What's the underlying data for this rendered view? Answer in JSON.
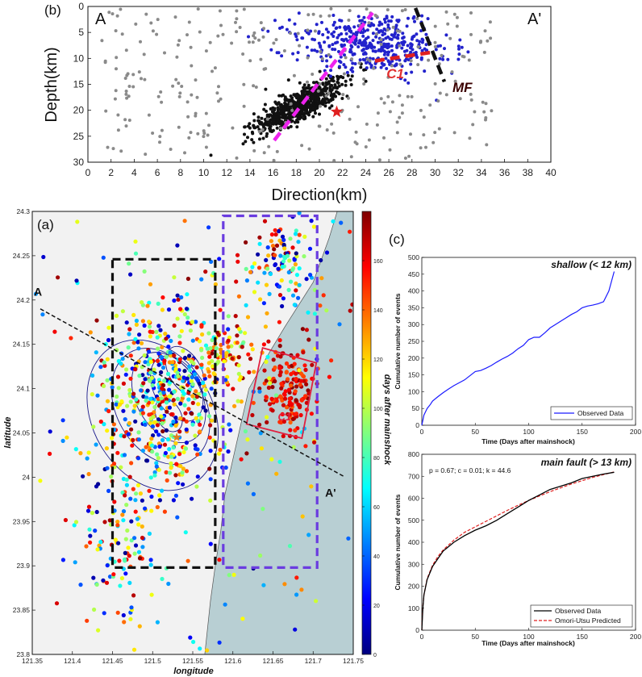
{
  "chart_data": [
    {
      "panel": "(b)",
      "type": "scatter",
      "title": "",
      "xlabel": "Direction(km)",
      "ylabel": "Depth(km)",
      "xlim": [
        0,
        40
      ],
      "ylim": [
        0,
        30
      ],
      "y_reversed": true,
      "xticks": [
        0,
        2,
        4,
        6,
        8,
        10,
        12,
        14,
        16,
        18,
        20,
        22,
        24,
        26,
        28,
        30,
        32,
        34,
        36,
        38,
        40
      ],
      "yticks": [
        0,
        5,
        10,
        15,
        20,
        25,
        30
      ],
      "corner_labels": [
        "A",
        "A'"
      ],
      "annotations": [
        {
          "text": "C1",
          "x": 25.8,
          "y": 13.8,
          "color": "#e03030"
        },
        {
          "text": "MF",
          "x": 31.5,
          "y": 16.5,
          "color": "#3a0000"
        }
      ],
      "lines": [
        {
          "name": "magenta-fault",
          "color": "#ee22ee",
          "style": "dashed",
          "points": [
            [
              16.1,
              25.8
            ],
            [
              24.6,
              1.2
            ]
          ]
        },
        {
          "name": "black-fault",
          "color": "#111111",
          "style": "dashed",
          "points": [
            [
              28.3,
              0.3
            ],
            [
              30.8,
              14.5
            ]
          ]
        },
        {
          "name": "red-fault",
          "color": "#e02020",
          "style": "dashed",
          "points": [
            [
              24.8,
              10.5
            ],
            [
              29.8,
              8.8
            ]
          ]
        }
      ],
      "star": {
        "x": 21.5,
        "y": 20.3,
        "color": "#e02020"
      },
      "clusters": [
        {
          "name": "black-main",
          "color": "#111111",
          "count": 650,
          "cx": 18.3,
          "cy": 19.0,
          "sx": 1.9,
          "sy": 2.7,
          "rho": -0.82
        },
        {
          "name": "blue-shallow",
          "color": "#2222cc",
          "count": 420,
          "cx": 24.5,
          "cy": 7.0,
          "sx": 3.4,
          "sy": 3.0,
          "rho": 0.2
        },
        {
          "name": "gray-background",
          "color": "#8a8a8a",
          "count": 300,
          "cx": 20,
          "cy": 14,
          "sx": 9,
          "sy": 8,
          "rho": 0
        }
      ]
    },
    {
      "panel": "(a)",
      "type": "scatter",
      "title": "",
      "xlabel": "longitude",
      "ylabel": "latitude",
      "xlim": [
        121.35,
        121.75
      ],
      "ylim": [
        23.8,
        24.3
      ],
      "xticks": [
        "121.35",
        "121.4",
        "121.45",
        "121.5",
        "121.55",
        "121.6",
        "121.65",
        "121.7",
        "121.75"
      ],
      "yticks": [
        "23.8",
        "23.85",
        "23.9",
        "23.95",
        "24",
        "24.05",
        "24.1",
        "24.15",
        "24.2",
        "24.25",
        "24.3"
      ],
      "colorbar": {
        "label": "days after mainshock",
        "min": 0,
        "max": 180,
        "ticks": [
          "0",
          "20",
          "40",
          "60",
          "80",
          "100",
          "120",
          "140",
          "160"
        ]
      },
      "profile": {
        "start_label": "A",
        "end_label": "A'",
        "start": [
          121.36,
          24.19
        ],
        "end": [
          121.74,
          24.0
        ]
      },
      "boxes": [
        {
          "name": "black-box",
          "color": "#111111",
          "lon": [
            121.45,
            121.578
          ],
          "lat": [
            23.898,
            24.246
          ]
        },
        {
          "name": "purple-box",
          "color": "#6a3ce0",
          "lon": [
            121.588,
            121.705
          ],
          "lat": [
            23.898,
            24.295
          ]
        }
      ],
      "c1_box": {
        "label": "C1",
        "color": "#e02040",
        "corners": [
          [
            121.637,
            24.146
          ],
          [
            121.704,
            24.129
          ],
          [
            121.686,
            24.044
          ],
          [
            121.617,
            24.06
          ]
        ]
      },
      "star": {
        "lon": 121.53,
        "lat": 24.045,
        "color": "#e08020"
      }
    },
    {
      "panel": "(c)",
      "type": "line",
      "title": "shallow (< 12 km)",
      "xlabel": "Time (Days after mainshock)",
      "ylabel": "Cumulative number of events",
      "xlim": [
        0,
        200
      ],
      "ylim": [
        0,
        500
      ],
      "xticks": [
        "0",
        "50",
        "100",
        "150",
        "200"
      ],
      "yticks": [
        "0",
        "50",
        "100",
        "150",
        "200",
        "250",
        "300",
        "350",
        "400",
        "450",
        "500"
      ],
      "legend": "bottom-right",
      "series": [
        {
          "name": "Observed Data",
          "color": "#1a1aff",
          "x": [
            0,
            2,
            5,
            8,
            10,
            15,
            20,
            25,
            30,
            40,
            50,
            55,
            60,
            65,
            70,
            75,
            80,
            85,
            90,
            95,
            100,
            105,
            110,
            115,
            120,
            125,
            130,
            135,
            140,
            145,
            150,
            155,
            160,
            165,
            170,
            175,
            178,
            180
          ],
          "y": [
            0,
            30,
            50,
            62,
            72,
            85,
            97,
            108,
            118,
            135,
            160,
            163,
            170,
            178,
            188,
            197,
            205,
            215,
            228,
            238,
            255,
            262,
            262,
            275,
            290,
            300,
            310,
            320,
            330,
            338,
            350,
            355,
            358,
            362,
            368,
            400,
            435,
            458
          ]
        }
      ]
    },
    {
      "panel": "(c)",
      "type": "line",
      "title": "main fault (> 13 km)",
      "xlabel": "Time (Days after mainshock)",
      "ylabel": "Cumulative number of events",
      "xlim": [
        0,
        200
      ],
      "ylim": [
        0,
        800
      ],
      "xticks": [
        "0",
        "50",
        "100",
        "150",
        "200"
      ],
      "yticks": [
        "0",
        "100",
        "200",
        "300",
        "400",
        "500",
        "600",
        "700",
        "800"
      ],
      "annotation": "p = 0.67; c = 0.01; k = 44.6",
      "legend": "bottom-right",
      "series": [
        {
          "name": "Observed Data",
          "color": "#000000",
          "x": [
            0,
            1,
            2,
            5,
            10,
            15,
            20,
            25,
            30,
            40,
            50,
            60,
            70,
            80,
            90,
            100,
            110,
            120,
            130,
            140,
            150,
            160,
            170,
            180
          ],
          "y": [
            0,
            100,
            160,
            230,
            290,
            325,
            360,
            380,
            400,
            430,
            455,
            475,
            500,
            530,
            560,
            590,
            615,
            640,
            655,
            670,
            690,
            700,
            710,
            718
          ]
        },
        {
          "name": "Omori-Utsu Predicted",
          "color": "#e02020",
          "dashed": true,
          "x": [
            0.01,
            0.5,
            1,
            2,
            5,
            10,
            15,
            20,
            30,
            40,
            50,
            60,
            70,
            80,
            90,
            100,
            120,
            140,
            160,
            180
          ],
          "y": [
            0,
            70,
            110,
            160,
            235,
            295,
            335,
            365,
            410,
            445,
            470,
            495,
            520,
            545,
            568,
            590,
            630,
            665,
            695,
            720
          ]
        }
      ]
    }
  ]
}
